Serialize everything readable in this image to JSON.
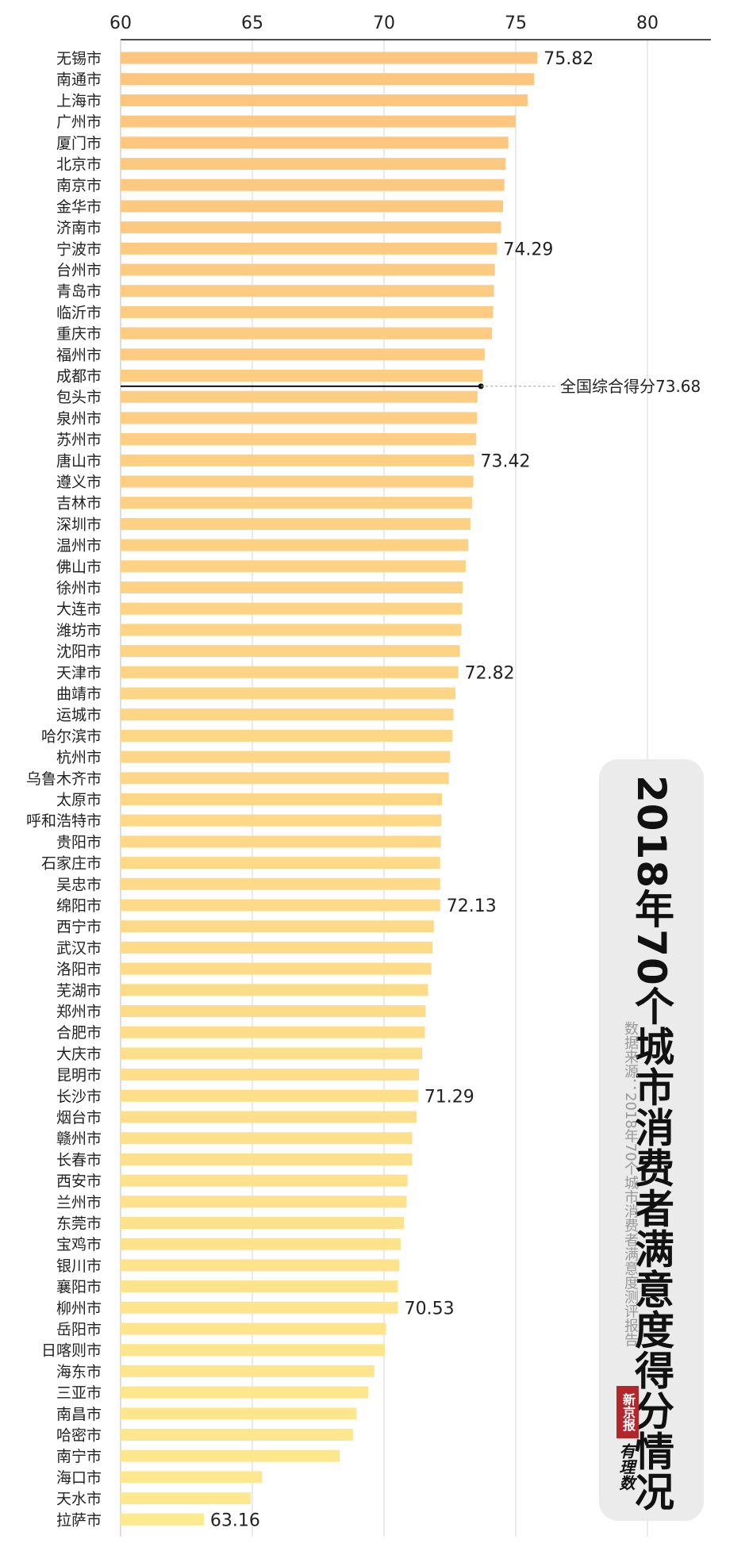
{
  "chart_data": {
    "type": "bar",
    "orientation": "horizontal",
    "title": "2018年70个城市消费者满意度得分情况",
    "source": "数据来源：2018年70个城市消费者满意度测评报告",
    "xlim": [
      60,
      82
    ],
    "ticks": [
      60,
      65,
      70,
      75,
      80
    ],
    "grid": true,
    "colors": {
      "top": "#fdc57f",
      "bottom": "#fde98f",
      "average_line": "#111111"
    },
    "average": {
      "label": "全国综合得分73.68",
      "value": 73.68
    },
    "categories": [
      "无锡市",
      "南通市",
      "上海市",
      "广州市",
      "厦门市",
      "北京市",
      "南京市",
      "金华市",
      "济南市",
      "宁波市",
      "台州市",
      "青岛市",
      "临沂市",
      "重庆市",
      "福州市",
      "成都市",
      "包头市",
      "泉州市",
      "苏州市",
      "唐山市",
      "遵义市",
      "吉林市",
      "深圳市",
      "温州市",
      "佛山市",
      "徐州市",
      "大连市",
      "潍坊市",
      "沈阳市",
      "天津市",
      "曲靖市",
      "运城市",
      "哈尔滨市",
      "杭州市",
      "乌鲁木齐市",
      "太原市",
      "呼和浩特市",
      "贵阳市",
      "石家庄市",
      "吴忠市",
      "绵阳市",
      "西宁市",
      "武汉市",
      "洛阳市",
      "芜湖市",
      "郑州市",
      "合肥市",
      "大庆市",
      "昆明市",
      "长沙市",
      "烟台市",
      "赣州市",
      "长春市",
      "西安市",
      "兰州市",
      "东莞市",
      "宝鸡市",
      "银川市",
      "襄阳市",
      "柳州市",
      "岳阳市",
      "日喀则市",
      "海东市",
      "三亚市",
      "南昌市",
      "哈密市",
      "南宁市",
      "海口市",
      "天水市",
      "拉萨市"
    ],
    "values": [
      75.82,
      75.7,
      75.45,
      75.0,
      74.72,
      74.62,
      74.57,
      74.52,
      74.44,
      74.29,
      74.21,
      74.17,
      74.14,
      74.1,
      73.82,
      73.75,
      73.55,
      73.53,
      73.5,
      73.42,
      73.39,
      73.34,
      73.28,
      73.2,
      73.1,
      72.99,
      72.97,
      72.94,
      72.88,
      72.82,
      72.71,
      72.64,
      72.6,
      72.51,
      72.46,
      72.2,
      72.18,
      72.16,
      72.13,
      72.13,
      72.13,
      71.89,
      71.84,
      71.8,
      71.67,
      71.58,
      71.55,
      71.45,
      71.33,
      71.29,
      71.23,
      71.07,
      71.07,
      70.89,
      70.86,
      70.76,
      70.63,
      70.58,
      70.53,
      70.53,
      70.08,
      70.03,
      69.63,
      69.41,
      68.96,
      68.82,
      68.32,
      65.37,
      64.95,
      63.16
    ],
    "value_labels": {
      "0": "75.82",
      "9": "74.29",
      "19": "73.42",
      "29": "72.82",
      "40": "72.13",
      "49": "71.29",
      "59": "70.53",
      "69": "63.16"
    }
  },
  "colors": {
    "panel_bg": "#ebebeb",
    "logo_red": "#b3262c"
  },
  "logo": {
    "brand": "新京报",
    "sub": "有理数"
  }
}
